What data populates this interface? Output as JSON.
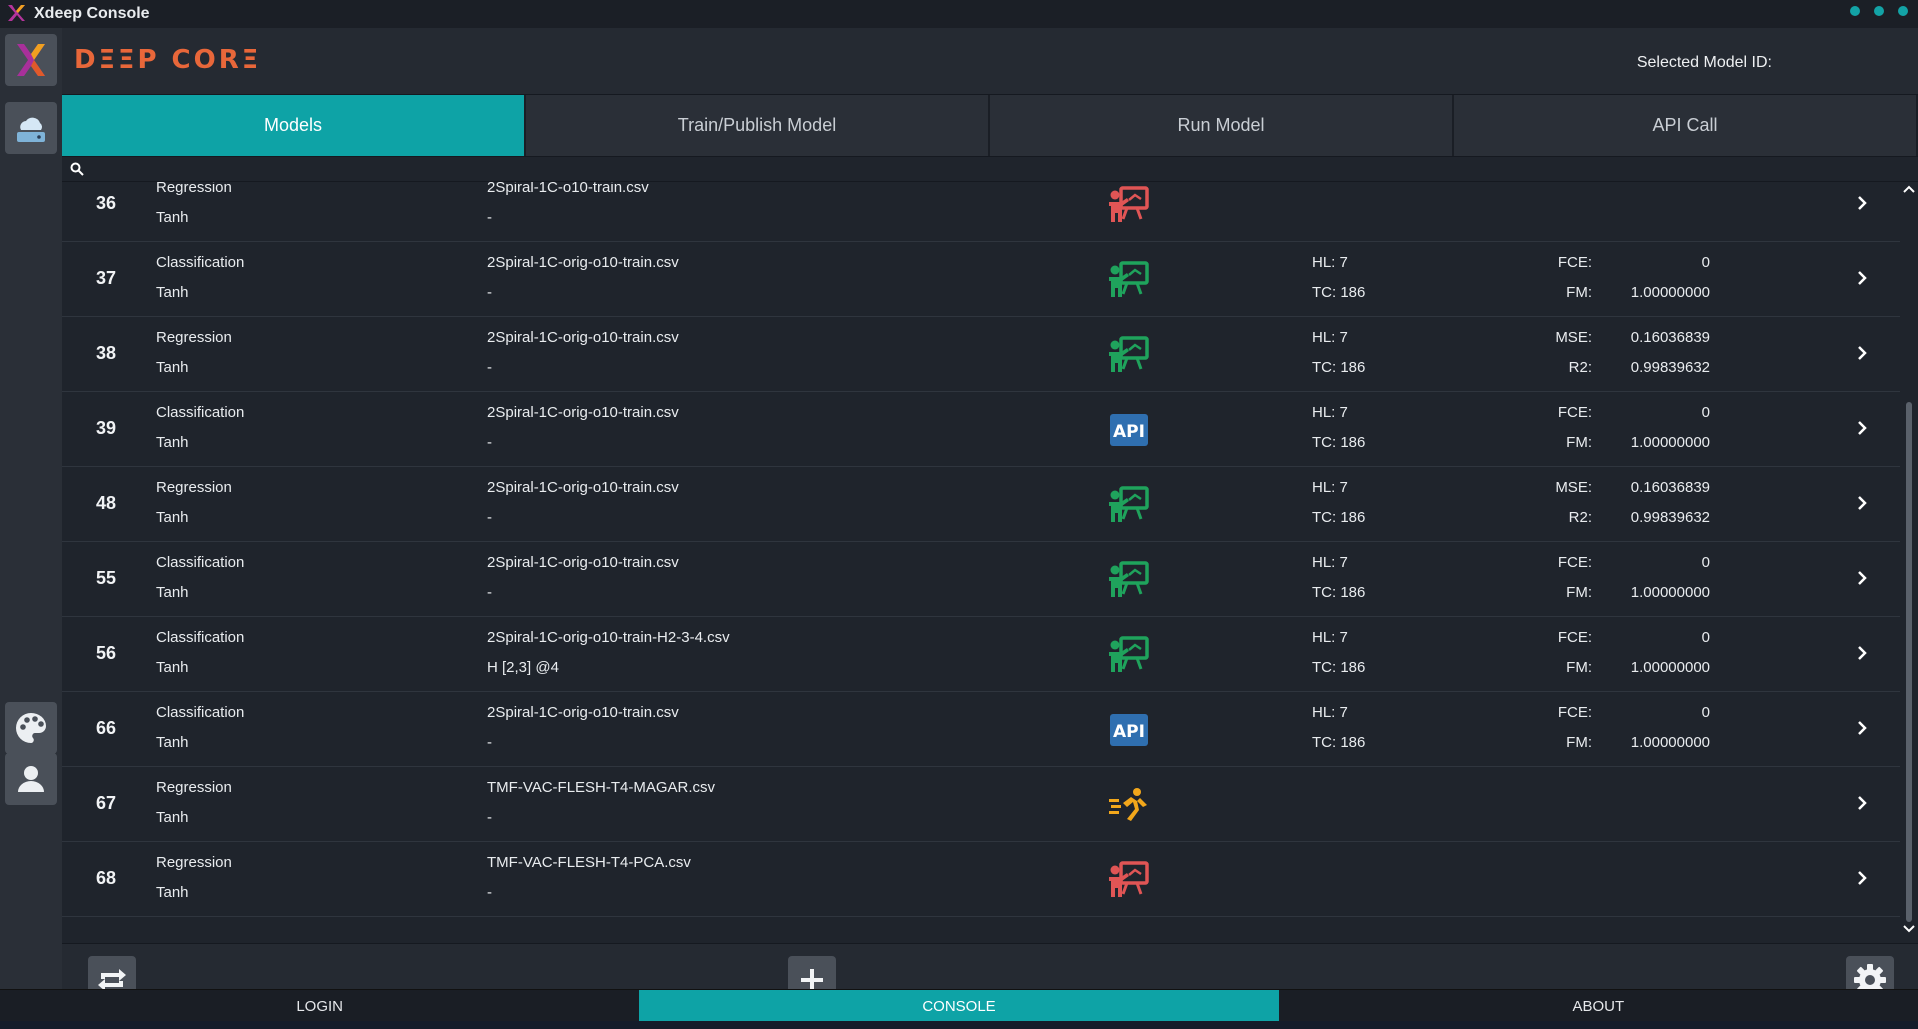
{
  "window": {
    "title": "Xdeep Console"
  },
  "header": {
    "brand": "DΞΞP CORΞ",
    "selected_model_label": "Selected Model ID:"
  },
  "tabs": [
    {
      "label": "Models",
      "active": true
    },
    {
      "label": "Train/Publish Model",
      "active": false
    },
    {
      "label": "Run Model",
      "active": false
    },
    {
      "label": "API Call",
      "active": false
    }
  ],
  "models": [
    {
      "id": "36",
      "type": "Regression",
      "activation": "Tanh",
      "file": "2Spiral-1C-o10-train.csv",
      "sub": "-",
      "status_icon": "presenter-icon-red",
      "hl": "",
      "tc": "",
      "m1_label": "",
      "m1_value": "",
      "m2_label": "",
      "m2_value": ""
    },
    {
      "id": "37",
      "type": "Classification",
      "activation": "Tanh",
      "file": "2Spiral-1C-orig-o10-train.csv",
      "sub": "-",
      "status_icon": "presenter-icon-green",
      "hl": "HL: 7",
      "tc": "TC: 186",
      "m1_label": "FCE:",
      "m1_value": "0",
      "m2_label": "FM:",
      "m2_value": "1.00000000"
    },
    {
      "id": "38",
      "type": "Regression",
      "activation": "Tanh",
      "file": "2Spiral-1C-orig-o10-train.csv",
      "sub": "-",
      "status_icon": "presenter-icon-green",
      "hl": "HL: 7",
      "tc": "TC: 186",
      "m1_label": "MSE:",
      "m1_value": "0.16036839",
      "m2_label": "R2:",
      "m2_value": "0.99839632"
    },
    {
      "id": "39",
      "type": "Classification",
      "activation": "Tanh",
      "file": "2Spiral-1C-orig-o10-train.csv",
      "sub": "-",
      "status_icon": "api-icon",
      "hl": "HL: 7",
      "tc": "TC: 186",
      "m1_label": "FCE:",
      "m1_value": "0",
      "m2_label": "FM:",
      "m2_value": "1.00000000"
    },
    {
      "id": "48",
      "type": "Regression",
      "activation": "Tanh",
      "file": "2Spiral-1C-orig-o10-train.csv",
      "sub": "-",
      "status_icon": "presenter-icon-green",
      "hl": "HL: 7",
      "tc": "TC: 186",
      "m1_label": "MSE:",
      "m1_value": "0.16036839",
      "m2_label": "R2:",
      "m2_value": "0.99839632"
    },
    {
      "id": "55",
      "type": "Classification",
      "activation": "Tanh",
      "file": "2Spiral-1C-orig-o10-train.csv",
      "sub": "-",
      "status_icon": "presenter-icon-green",
      "hl": "HL: 7",
      "tc": "TC: 186",
      "m1_label": "FCE:",
      "m1_value": "0",
      "m2_label": "FM:",
      "m2_value": "1.00000000"
    },
    {
      "id": "56",
      "type": "Classification",
      "activation": "Tanh",
      "file": "2Spiral-1C-orig-o10-train-H2-3-4.csv",
      "sub": "H [2,3] @4",
      "status_icon": "presenter-icon-green",
      "hl": "HL: 7",
      "tc": "TC: 186",
      "m1_label": "FCE:",
      "m1_value": "0",
      "m2_label": "FM:",
      "m2_value": "1.00000000"
    },
    {
      "id": "66",
      "type": "Classification",
      "activation": "Tanh",
      "file": "2Spiral-1C-orig-o10-train.csv",
      "sub": "-",
      "status_icon": "api-icon",
      "hl": "HL: 7",
      "tc": "TC: 186",
      "m1_label": "FCE:",
      "m1_value": "0",
      "m2_label": "FM:",
      "m2_value": "1.00000000"
    },
    {
      "id": "67",
      "type": "Regression",
      "activation": "Tanh",
      "file": "TMF-VAC-FLESH-T4-MAGAR.csv",
      "sub": "-",
      "status_icon": "running-icon",
      "hl": "",
      "tc": "",
      "m1_label": "",
      "m1_value": "",
      "m2_label": "",
      "m2_value": ""
    },
    {
      "id": "68",
      "type": "Regression",
      "activation": "Tanh",
      "file": "TMF-VAC-FLESH-T4-PCA.csv",
      "sub": "-",
      "status_icon": "presenter-icon-red",
      "hl": "",
      "tc": "",
      "m1_label": "",
      "m1_value": "",
      "m2_label": "",
      "m2_value": ""
    }
  ],
  "bottom_nav": [
    {
      "label": "LOGIN",
      "active": false
    },
    {
      "label": "CONSOLE",
      "active": true
    },
    {
      "label": "ABOUT",
      "active": false
    }
  ],
  "colors": {
    "accent": "#0ea3a6",
    "brand": "#e8673a",
    "presenter_green": "#1fa35c",
    "presenter_red": "#e05555",
    "api_blue": "#2f6fb0",
    "running_orange": "#f2a71b"
  },
  "icons": {
    "sidebar": [
      "xdeep-logo-icon",
      "cloud-server-icon",
      "palette-icon",
      "user-icon"
    ],
    "actions": [
      "refresh-icon",
      "add-icon",
      "settings-icon"
    ],
    "search": "search-icon",
    "row_chevron": "chevron-right-icon"
  }
}
